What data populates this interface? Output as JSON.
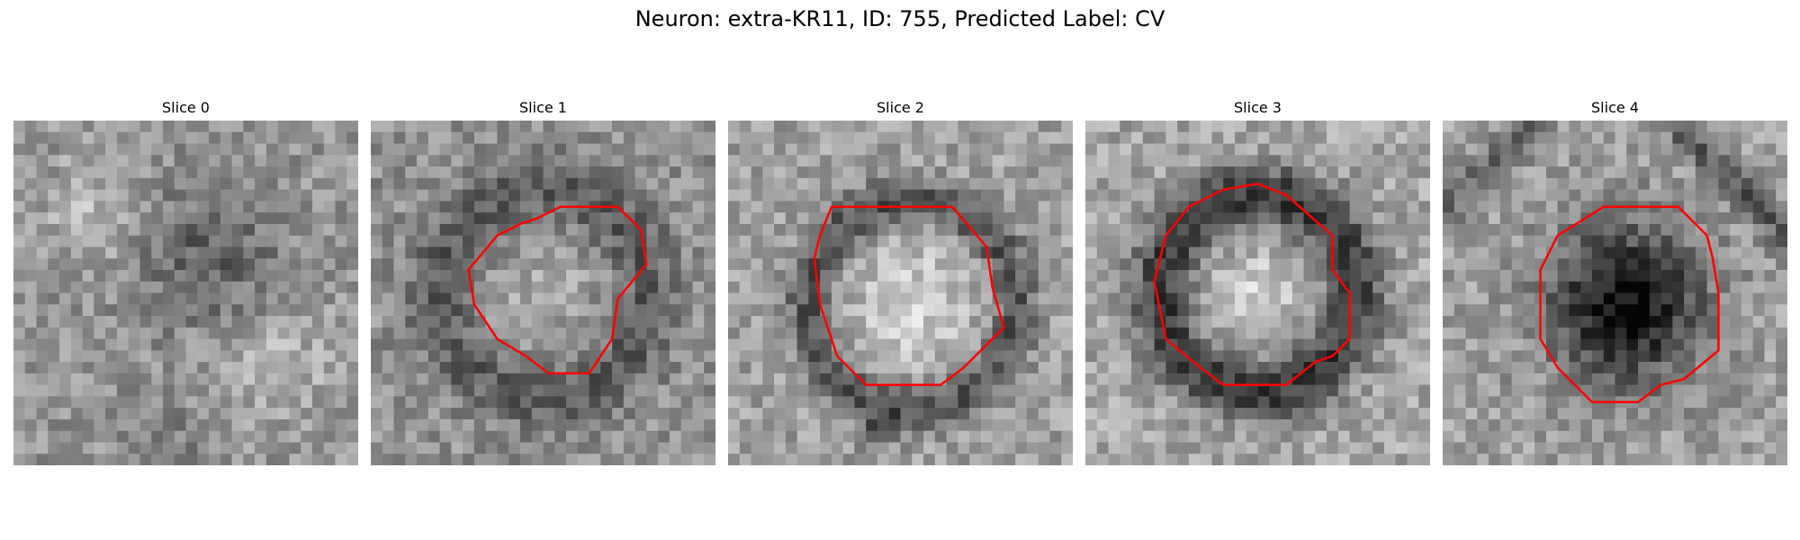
{
  "figure": {
    "title": "Neuron: extra-KR11, ID: 755, Predicted Label: CV"
  },
  "colors": {
    "contour": "#ff0000"
  },
  "panels": [
    {
      "title": "Slice 0",
      "image_description_icon": "grayscale-noise-image",
      "has_contour": false
    },
    {
      "title": "Slice 1",
      "image_description_icon": "grayscale-noise-image",
      "has_contour": true
    },
    {
      "title": "Slice 2",
      "image_description_icon": "grayscale-noise-image",
      "has_contour": true
    },
    {
      "title": "Slice 3",
      "image_description_icon": "grayscale-noise-image",
      "has_contour": true
    },
    {
      "title": "Slice 4",
      "image_description_icon": "grayscale-noise-image",
      "has_contour": true
    }
  ]
}
